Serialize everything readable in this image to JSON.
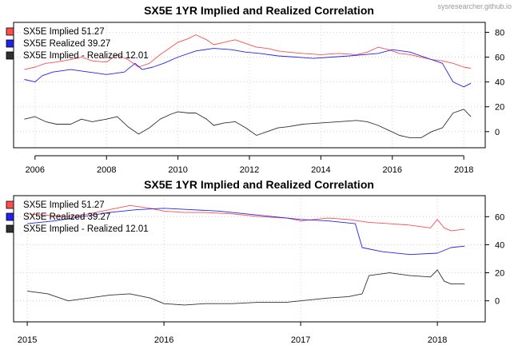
{
  "credit": "sysresearcher.github.io",
  "chart_data": [
    {
      "type": "line",
      "title": "SX5E 1YR Implied and Realized Correlation",
      "xlabel": "",
      "ylabel": "",
      "x_ticks": [
        "2006",
        "2008",
        "2010",
        "2012",
        "2014",
        "2016",
        "2018"
      ],
      "y_ticks": [
        0,
        20,
        40,
        60,
        80
      ],
      "xlim": [
        2005.4,
        2018.6
      ],
      "ylim": [
        -13,
        88
      ],
      "grid": true,
      "legend_position": "top-left",
      "legend": [
        "SX5E Implied 51.27",
        "SX5E Realized 39.27",
        "SX5E Implied - Realized 12.01"
      ],
      "series": [
        {
          "name": "SX5E Implied 51.27",
          "color": "#ff4d4d",
          "x": [
            2005.7,
            2006.0,
            2006.3,
            2006.6,
            2007.0,
            2007.3,
            2007.6,
            2008.0,
            2008.3,
            2008.6,
            2008.9,
            2009.2,
            2009.5,
            2009.8,
            2010.0,
            2010.3,
            2010.5,
            2010.8,
            2011.0,
            2011.3,
            2011.6,
            2011.9,
            2012.2,
            2012.5,
            2012.8,
            2013.1,
            2013.5,
            2014.0,
            2014.5,
            2015.0,
            2015.3,
            2015.6,
            2015.9,
            2016.2,
            2016.5,
            2016.8,
            2017.1,
            2017.4,
            2017.7,
            2018.0,
            2018.2
          ],
          "values": [
            50,
            52,
            55,
            56,
            58,
            60,
            57,
            56,
            62,
            58,
            52,
            55,
            62,
            68,
            72,
            75,
            78,
            74,
            70,
            72,
            74,
            71,
            68,
            67,
            65,
            64,
            63,
            62,
            63,
            62,
            64,
            68,
            66,
            63,
            62,
            60,
            58,
            57,
            55,
            52,
            51
          ]
        },
        {
          "name": "SX5E Realized 39.27",
          "color": "#2222ee",
          "x": [
            2005.7,
            2006.0,
            2006.2,
            2006.5,
            2007.0,
            2007.5,
            2008.0,
            2008.5,
            2008.8,
            2009.0,
            2009.3,
            2009.6,
            2010.0,
            2010.5,
            2011.0,
            2011.5,
            2011.9,
            2012.3,
            2012.8,
            2013.3,
            2013.8,
            2014.3,
            2014.8,
            2015.2,
            2015.6,
            2016.0,
            2016.5,
            2016.9,
            2017.2,
            2017.4,
            2017.7,
            2018.0,
            2018.2
          ],
          "values": [
            42,
            40,
            45,
            48,
            50,
            48,
            46,
            48,
            55,
            50,
            52,
            55,
            60,
            65,
            67,
            66,
            64,
            63,
            61,
            60,
            59,
            60,
            61,
            62,
            63,
            66,
            64,
            60,
            57,
            55,
            40,
            36,
            39
          ]
        },
        {
          "name": "SX5E Implied - Realized 12.01",
          "color": "#303030",
          "x": [
            2005.7,
            2006.0,
            2006.3,
            2006.6,
            2007.0,
            2007.3,
            2007.6,
            2008.0,
            2008.3,
            2008.6,
            2008.9,
            2009.2,
            2009.5,
            2009.8,
            2010.0,
            2010.3,
            2010.5,
            2010.8,
            2011.0,
            2011.3,
            2011.6,
            2011.9,
            2012.2,
            2012.5,
            2012.8,
            2013.1,
            2013.5,
            2014.0,
            2014.5,
            2015.0,
            2015.3,
            2015.6,
            2015.9,
            2016.2,
            2016.5,
            2016.8,
            2017.1,
            2017.4,
            2017.7,
            2018.0,
            2018.2
          ],
          "values": [
            10,
            12,
            8,
            6,
            6,
            10,
            8,
            10,
            12,
            4,
            -2,
            3,
            10,
            14,
            16,
            15,
            15,
            10,
            5,
            7,
            8,
            3,
            -3,
            0,
            3,
            4,
            6,
            7,
            8,
            9,
            8,
            5,
            1,
            -3,
            -5,
            -5,
            0,
            3,
            15,
            18,
            12
          ]
        }
      ]
    },
    {
      "type": "line",
      "title": "SX5E 1YR Implied and Realized Correlation",
      "xlabel": "",
      "ylabel": "",
      "x_ticks": [
        "2015",
        "2016",
        "2017",
        "2018"
      ],
      "y_ticks": [
        0,
        20,
        40,
        60
      ],
      "xlim": [
        2014.9,
        2018.35
      ],
      "ylim": [
        -15,
        75
      ],
      "grid": true,
      "legend_position": "top-left",
      "legend": [
        "SX5E Implied 51.27",
        "SX5E Realized 39.27",
        "SX5E Implied - Realized 12.01"
      ],
      "series": [
        {
          "name": "SX5E Implied 51.27",
          "color": "#ff4d4d",
          "x": [
            2015.0,
            2015.15,
            2015.3,
            2015.45,
            2015.6,
            2015.75,
            2015.9,
            2016.0,
            2016.15,
            2016.3,
            2016.5,
            2016.7,
            2016.9,
            2017.0,
            2017.2,
            2017.35,
            2017.5,
            2017.65,
            2017.8,
            2017.95,
            2018.0,
            2018.05,
            2018.1,
            2018.2
          ],
          "values": [
            62,
            61,
            60,
            62,
            65,
            68,
            66,
            64,
            63,
            63,
            62,
            60,
            59,
            57,
            59,
            58,
            56,
            55,
            54,
            52,
            58,
            52,
            50,
            51
          ]
        },
        {
          "name": "SX5E Realized 39.27",
          "color": "#2222ee",
          "x": [
            2015.0,
            2015.2,
            2015.4,
            2015.6,
            2015.8,
            2016.0,
            2016.2,
            2016.4,
            2016.6,
            2016.8,
            2017.0,
            2017.2,
            2017.4,
            2017.45,
            2017.6,
            2017.8,
            2018.0,
            2018.1,
            2018.2
          ],
          "values": [
            55,
            57,
            60,
            63,
            65,
            66,
            65,
            64,
            62,
            60,
            58,
            57,
            55,
            38,
            35,
            33,
            34,
            38,
            39
          ]
        },
        {
          "name": "SX5E Implied - Realized 12.01",
          "color": "#303030",
          "x": [
            2015.0,
            2015.15,
            2015.3,
            2015.45,
            2015.6,
            2015.75,
            2015.9,
            2016.0,
            2016.15,
            2016.3,
            2016.5,
            2016.7,
            2016.9,
            2017.0,
            2017.2,
            2017.35,
            2017.45,
            2017.5,
            2017.65,
            2017.8,
            2017.95,
            2018.0,
            2018.05,
            2018.1,
            2018.2
          ],
          "values": [
            7,
            5,
            0,
            2,
            4,
            5,
            2,
            -2,
            -3,
            -2,
            -2,
            -1,
            -1,
            0,
            2,
            3,
            5,
            18,
            20,
            18,
            17,
            22,
            14,
            12,
            12
          ]
        }
      ]
    }
  ]
}
